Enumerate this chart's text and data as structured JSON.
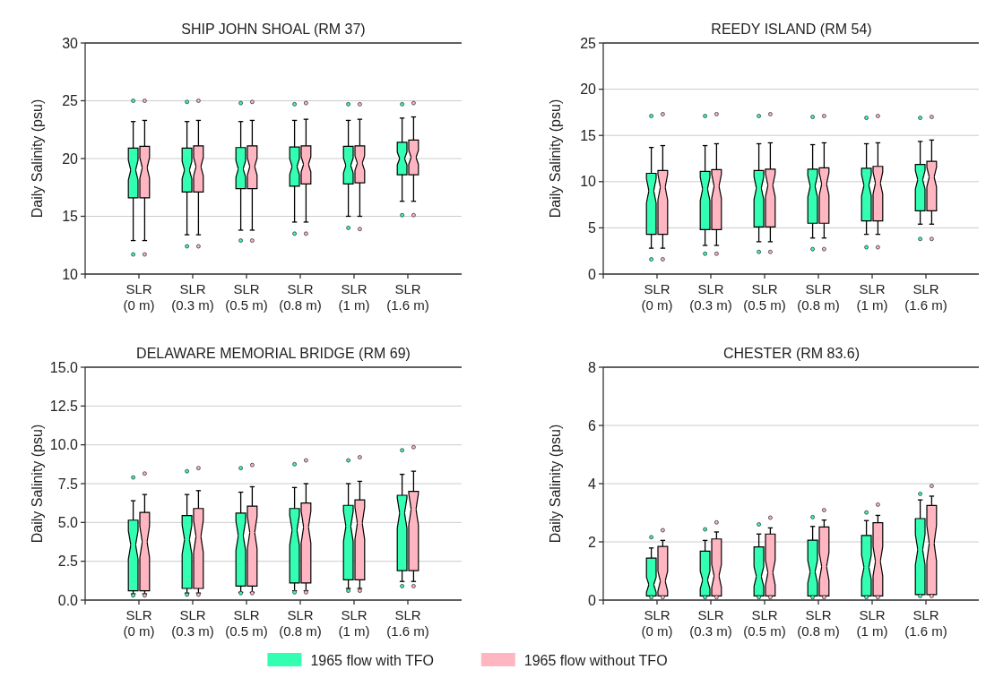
{
  "chart_data": [
    {
      "type": "box",
      "title": "SHIP JOHN SHOAL (RM 37)",
      "ylabel": "Daily Salinity (psu)",
      "categories": [
        "SLR\n(0 m)",
        "SLR\n(0.3 m)",
        "SLR\n(0.5 m)",
        "SLR\n(0.8 m)",
        "SLR\n(1 m)",
        "SLR\n(1.6 m)"
      ],
      "ylim": [
        10,
        30
      ],
      "yticks": [
        10,
        15,
        20,
        25,
        30
      ],
      "grid": "y",
      "series": [
        {
          "color": "#33ffb3",
          "boxes": [
            {
              "low": 12.9,
              "q1": 16.6,
              "median": 19.0,
              "q3": 20.9,
              "high": 23.2,
              "outliers": [
                11.7,
                25.0
              ]
            },
            {
              "low": 13.4,
              "q1": 17.1,
              "median": 19.0,
              "q3": 20.9,
              "high": 23.2,
              "outliers": [
                12.4,
                24.9
              ]
            },
            {
              "low": 13.8,
              "q1": 17.4,
              "median": 19.1,
              "q3": 20.95,
              "high": 23.2,
              "outliers": [
                12.9,
                24.8
              ]
            },
            {
              "low": 14.5,
              "q1": 17.6,
              "median": 19.3,
              "q3": 21.0,
              "high": 23.3,
              "outliers": [
                13.5,
                24.7
              ]
            },
            {
              "low": 15.0,
              "q1": 17.8,
              "median": 19.4,
              "q3": 21.05,
              "high": 23.3,
              "outliers": [
                14.0,
                24.7
              ]
            },
            {
              "low": 16.3,
              "q1": 18.6,
              "median": 20.0,
              "q3": 21.4,
              "high": 23.5,
              "outliers": [
                15.1,
                24.7
              ]
            }
          ]
        },
        {
          "color": "#ffb6c1",
          "boxes": [
            {
              "low": 12.9,
              "q1": 16.6,
              "median": 19.2,
              "q3": 21.05,
              "high": 23.3,
              "outliers": [
                11.7,
                25.0
              ]
            },
            {
              "low": 13.4,
              "q1": 17.1,
              "median": 19.3,
              "q3": 21.1,
              "high": 23.3,
              "outliers": [
                12.4,
                25.0
              ]
            },
            {
              "low": 13.8,
              "q1": 17.4,
              "median": 19.3,
              "q3": 21.1,
              "high": 23.3,
              "outliers": [
                12.9,
                24.9
              ]
            },
            {
              "low": 14.5,
              "q1": 17.8,
              "median": 19.5,
              "q3": 21.1,
              "high": 23.4,
              "outliers": [
                13.5,
                24.8
              ]
            },
            {
              "low": 15.0,
              "q1": 17.9,
              "median": 19.6,
              "q3": 21.1,
              "high": 23.4,
              "outliers": [
                13.9,
                24.7
              ]
            },
            {
              "low": 16.3,
              "q1": 18.6,
              "median": 20.1,
              "q3": 21.6,
              "high": 23.6,
              "outliers": [
                15.1,
                24.8
              ]
            }
          ]
        }
      ]
    },
    {
      "type": "box",
      "title": "REEDY ISLAND (RM 54)",
      "ylabel": "Daily Salinity (psu)",
      "categories": [
        "SLR\n(0 m)",
        "SLR\n(0.3 m)",
        "SLR\n(0.5 m)",
        "SLR\n(0.8 m)",
        "SLR\n(1 m)",
        "SLR\n(1.6 m)"
      ],
      "ylim": [
        0,
        25
      ],
      "yticks": [
        0,
        5,
        10,
        15,
        20,
        25
      ],
      "grid": "y",
      "series": [
        {
          "color": "#33ffb3",
          "boxes": [
            {
              "low": 2.8,
              "q1": 4.3,
              "median": 9.0,
              "q3": 10.9,
              "high": 13.7,
              "outliers": [
                1.6,
                17.1
              ]
            },
            {
              "low": 3.1,
              "q1": 4.8,
              "median": 9.2,
              "q3": 11.1,
              "high": 13.9,
              "outliers": [
                2.2,
                17.1
              ]
            },
            {
              "low": 3.5,
              "q1": 5.1,
              "median": 9.3,
              "q3": 11.2,
              "high": 14.1,
              "outliers": [
                2.4,
                17.1
              ]
            },
            {
              "low": 3.9,
              "q1": 5.5,
              "median": 9.5,
              "q3": 11.35,
              "high": 14.0,
              "outliers": [
                2.7,
                17.0
              ]
            },
            {
              "low": 4.3,
              "q1": 5.75,
              "median": 9.6,
              "q3": 11.45,
              "high": 14.1,
              "outliers": [
                2.9,
                16.9
              ]
            },
            {
              "low": 5.4,
              "q1": 6.85,
              "median": 10.2,
              "q3": 11.85,
              "high": 14.35,
              "outliers": [
                3.8,
                16.9
              ]
            }
          ]
        },
        {
          "color": "#ffb6c1",
          "boxes": [
            {
              "low": 2.8,
              "q1": 4.3,
              "median": 9.4,
              "q3": 11.2,
              "high": 13.9,
              "outliers": [
                1.6,
                17.3
              ]
            },
            {
              "low": 3.1,
              "q1": 4.8,
              "median": 9.5,
              "q3": 11.3,
              "high": 14.1,
              "outliers": [
                2.2,
                17.3
              ]
            },
            {
              "low": 3.5,
              "q1": 5.1,
              "median": 9.6,
              "q3": 11.35,
              "high": 14.2,
              "outliers": [
                2.4,
                17.3
              ]
            },
            {
              "low": 3.9,
              "q1": 5.5,
              "median": 9.75,
              "q3": 11.5,
              "high": 14.2,
              "outliers": [
                2.7,
                17.1
              ]
            },
            {
              "low": 4.3,
              "q1": 5.75,
              "median": 9.85,
              "q3": 11.65,
              "high": 14.2,
              "outliers": [
                2.9,
                17.1
              ]
            },
            {
              "low": 5.4,
              "q1": 6.85,
              "median": 10.5,
              "q3": 12.2,
              "high": 14.5,
              "outliers": [
                3.8,
                17.0
              ]
            }
          ]
        }
      ]
    },
    {
      "type": "box",
      "title": "DELAWARE MEMORIAL BRIDGE (RM 69)",
      "ylabel": "Daily Salinity (psu)",
      "categories": [
        "SLR\n(0 m)",
        "SLR\n(0.3 m)",
        "SLR\n(0.5 m)",
        "SLR\n(0.8 m)",
        "SLR\n(1 m)",
        "SLR\n(1.6 m)"
      ],
      "ylim": [
        0,
        15
      ],
      "yticks": [
        {
          "value": 0,
          "label": "0.0"
        },
        2.5,
        {
          "value": 5,
          "label": "5.0"
        },
        7.5,
        {
          "value": 10,
          "label": "10.0"
        },
        12.5,
        {
          "value": 15,
          "label": "15.0"
        }
      ],
      "grid": "y",
      "series": [
        {
          "color": "#33ffb3",
          "boxes": [
            {
              "low": 0.4,
              "q1": 0.6,
              "median": 3.55,
              "q3": 5.15,
              "high": 6.4,
              "outliers": [
                0.3,
                7.9
              ]
            },
            {
              "low": 0.45,
              "q1": 0.75,
              "median": 3.9,
              "q3": 5.45,
              "high": 6.8,
              "outliers": [
                0.35,
                8.3
              ]
            },
            {
              "low": 0.5,
              "q1": 0.9,
              "median": 4.15,
              "q3": 5.6,
              "high": 6.95,
              "outliers": [
                0.45,
                8.5
              ]
            },
            {
              "low": 0.6,
              "q1": 1.1,
              "median": 4.5,
              "q3": 5.9,
              "high": 7.25,
              "outliers": [
                0.5,
                8.75
              ]
            },
            {
              "low": 0.75,
              "q1": 1.3,
              "median": 4.75,
              "q3": 6.1,
              "high": 7.5,
              "outliers": [
                0.6,
                9.0
              ]
            },
            {
              "low": 1.2,
              "q1": 1.9,
              "median": 5.6,
              "q3": 6.75,
              "high": 8.1,
              "outliers": [
                0.9,
                9.65
              ]
            }
          ]
        },
        {
          "color": "#ffb6c1",
          "boxes": [
            {
              "low": 0.4,
              "q1": 0.6,
              "median": 3.75,
              "q3": 5.65,
              "high": 6.8,
              "outliers": [
                0.3,
                8.15
              ]
            },
            {
              "low": 0.45,
              "q1": 0.75,
              "median": 4.1,
              "q3": 5.9,
              "high": 7.05,
              "outliers": [
                0.35,
                8.5
              ]
            },
            {
              "low": 0.5,
              "q1": 0.9,
              "median": 4.35,
              "q3": 6.05,
              "high": 7.3,
              "outliers": [
                0.45,
                8.7
              ]
            },
            {
              "low": 0.6,
              "q1": 1.1,
              "median": 4.7,
              "q3": 6.25,
              "high": 7.5,
              "outliers": [
                0.5,
                9.0
              ]
            },
            {
              "low": 0.75,
              "q1": 1.3,
              "median": 4.95,
              "q3": 6.45,
              "high": 7.65,
              "outliers": [
                0.6,
                9.2
              ]
            },
            {
              "low": 1.2,
              "q1": 1.9,
              "median": 5.85,
              "q3": 7.0,
              "high": 8.3,
              "outliers": [
                0.9,
                9.85
              ]
            }
          ]
        }
      ]
    },
    {
      "type": "box",
      "title": "CHESTER (RM 83.6)",
      "ylabel": "Daily Salinity (psu)",
      "categories": [
        "SLR\n(0 m)",
        "SLR\n(0.3 m)",
        "SLR\n(0.5 m)",
        "SLR\n(0.8 m)",
        "SLR\n(1 m)",
        "SLR\n(1.6 m)"
      ],
      "ylim": [
        0,
        8
      ],
      "yticks": [
        0,
        2,
        4,
        6,
        8
      ],
      "grid": "y",
      "legend": "bottom",
      "series": [
        {
          "name": "1965 flow with TFO",
          "color": "#33ffb3",
          "boxes": [
            {
              "low": 0.14,
              "q1": 0.14,
              "median": 0.53,
              "q3": 1.44,
              "high": 1.79,
              "outliers": [
                0.1,
                2.16
              ]
            },
            {
              "low": 0.14,
              "q1": 0.14,
              "median": 0.69,
              "q3": 1.68,
              "high": 2.05,
              "outliers": [
                0.1,
                2.43
              ]
            },
            {
              "low": 0.14,
              "q1": 0.14,
              "median": 0.81,
              "q3": 1.83,
              "high": 2.27,
              "outliers": [
                0.1,
                2.6
              ]
            },
            {
              "low": 0.14,
              "q1": 0.14,
              "median": 0.97,
              "q3": 2.06,
              "high": 2.53,
              "outliers": [
                0.1,
                2.85
              ]
            },
            {
              "low": 0.14,
              "q1": 0.14,
              "median": 1.13,
              "q3": 2.22,
              "high": 2.73,
              "outliers": [
                0.1,
                3.01
              ]
            },
            {
              "low": 0.19,
              "q1": 0.19,
              "median": 1.73,
              "q3": 2.8,
              "high": 3.44,
              "outliers": [
                0.14,
                3.65
              ]
            }
          ]
        },
        {
          "name": "1965 flow without TFO",
          "color": "#ffb6c1",
          "boxes": [
            {
              "low": 0.14,
              "q1": 0.14,
              "median": 0.65,
              "q3": 1.84,
              "high": 2.05,
              "outliers": [
                0.1,
                2.4
              ]
            },
            {
              "low": 0.14,
              "q1": 0.14,
              "median": 0.83,
              "q3": 2.1,
              "high": 2.34,
              "outliers": [
                0.1,
                2.67
              ]
            },
            {
              "low": 0.14,
              "q1": 0.14,
              "median": 0.94,
              "q3": 2.27,
              "high": 2.48,
              "outliers": [
                0.1,
                2.83
              ]
            },
            {
              "low": 0.14,
              "q1": 0.14,
              "median": 1.15,
              "q3": 2.51,
              "high": 2.75,
              "outliers": [
                0.1,
                3.09
              ]
            },
            {
              "low": 0.14,
              "q1": 0.14,
              "median": 1.33,
              "q3": 2.66,
              "high": 2.91,
              "outliers": [
                0.1,
                3.28
              ]
            },
            {
              "low": 0.19,
              "q1": 0.19,
              "median": 1.95,
              "q3": 3.25,
              "high": 3.57,
              "outliers": [
                0.14,
                3.92
              ]
            }
          ]
        }
      ]
    }
  ]
}
